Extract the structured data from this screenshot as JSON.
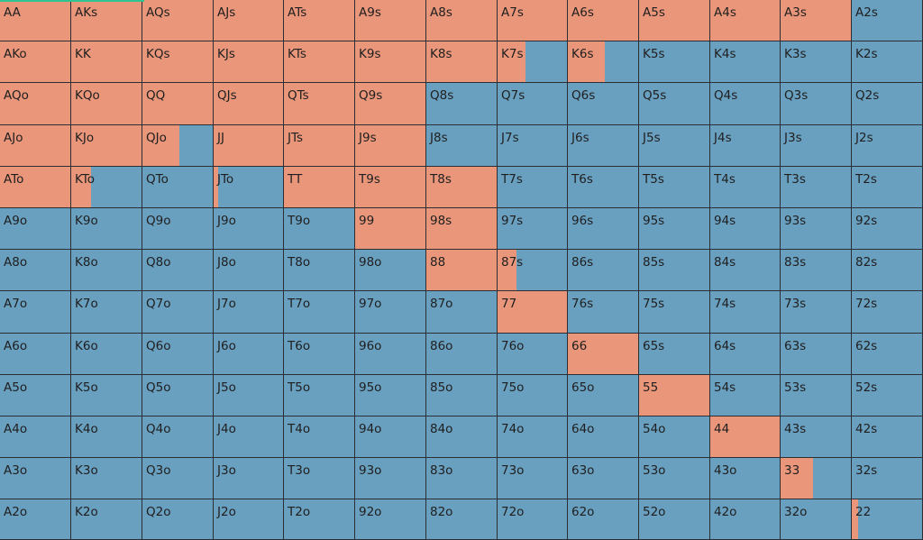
{
  "colors": {
    "raise": "#e9967a",
    "fold": "#699fbf",
    "accent": "#2fc38f"
  },
  "hands": [
    [
      {
        "label": "AA",
        "raise": 1.0
      },
      {
        "label": "AKs",
        "raise": 1.0
      },
      {
        "label": "AQs",
        "raise": 1.0
      },
      {
        "label": "AJs",
        "raise": 1.0
      },
      {
        "label": "ATs",
        "raise": 1.0
      },
      {
        "label": "A9s",
        "raise": 1.0
      },
      {
        "label": "A8s",
        "raise": 1.0
      },
      {
        "label": "A7s",
        "raise": 1.0
      },
      {
        "label": "A6s",
        "raise": 1.0
      },
      {
        "label": "A5s",
        "raise": 1.0
      },
      {
        "label": "A4s",
        "raise": 1.0
      },
      {
        "label": "A3s",
        "raise": 1.0
      },
      {
        "label": "A2s",
        "raise": 0.0
      }
    ],
    [
      {
        "label": "AKo",
        "raise": 1.0
      },
      {
        "label": "KK",
        "raise": 1.0
      },
      {
        "label": "KQs",
        "raise": 1.0
      },
      {
        "label": "KJs",
        "raise": 1.0
      },
      {
        "label": "KTs",
        "raise": 1.0
      },
      {
        "label": "K9s",
        "raise": 1.0
      },
      {
        "label": "K8s",
        "raise": 1.0
      },
      {
        "label": "K7s",
        "raise": 0.4
      },
      {
        "label": "K6s",
        "raise": 0.53
      },
      {
        "label": "K5s",
        "raise": 0.0
      },
      {
        "label": "K4s",
        "raise": 0.0
      },
      {
        "label": "K3s",
        "raise": 0.0
      },
      {
        "label": "K2s",
        "raise": 0.0
      }
    ],
    [
      {
        "label": "AQo",
        "raise": 1.0
      },
      {
        "label": "KQo",
        "raise": 1.0
      },
      {
        "label": "QQ",
        "raise": 1.0
      },
      {
        "label": "QJs",
        "raise": 1.0
      },
      {
        "label": "QTs",
        "raise": 1.0
      },
      {
        "label": "Q9s",
        "raise": 1.0
      },
      {
        "label": "Q8s",
        "raise": 0.0
      },
      {
        "label": "Q7s",
        "raise": 0.0
      },
      {
        "label": "Q6s",
        "raise": 0.0
      },
      {
        "label": "Q5s",
        "raise": 0.0
      },
      {
        "label": "Q4s",
        "raise": 0.0
      },
      {
        "label": "Q3s",
        "raise": 0.0
      },
      {
        "label": "Q2s",
        "raise": 0.0
      }
    ],
    [
      {
        "label": "AJo",
        "raise": 1.0
      },
      {
        "label": "KJo",
        "raise": 1.0
      },
      {
        "label": "QJo",
        "raise": 0.53
      },
      {
        "label": "JJ",
        "raise": 1.0
      },
      {
        "label": "JTs",
        "raise": 1.0
      },
      {
        "label": "J9s",
        "raise": 1.0
      },
      {
        "label": "J8s",
        "raise": 0.0
      },
      {
        "label": "J7s",
        "raise": 0.0
      },
      {
        "label": "J6s",
        "raise": 0.0
      },
      {
        "label": "J5s",
        "raise": 0.0
      },
      {
        "label": "J4s",
        "raise": 0.0
      },
      {
        "label": "J3s",
        "raise": 0.0
      },
      {
        "label": "J2s",
        "raise": 0.0
      }
    ],
    [
      {
        "label": "ATo",
        "raise": 1.0
      },
      {
        "label": "KTo",
        "raise": 0.28
      },
      {
        "label": "QTo",
        "raise": 0.0
      },
      {
        "label": "JTo",
        "raise": 0.07
      },
      {
        "label": "TT",
        "raise": 1.0
      },
      {
        "label": "T9s",
        "raise": 1.0
      },
      {
        "label": "T8s",
        "raise": 1.0
      },
      {
        "label": "T7s",
        "raise": 0.0
      },
      {
        "label": "T6s",
        "raise": 0.0
      },
      {
        "label": "T5s",
        "raise": 0.0
      },
      {
        "label": "T4s",
        "raise": 0.0
      },
      {
        "label": "T3s",
        "raise": 0.0
      },
      {
        "label": "T2s",
        "raise": 0.0
      }
    ],
    [
      {
        "label": "A9o",
        "raise": 0.0
      },
      {
        "label": "K9o",
        "raise": 0.0
      },
      {
        "label": "Q9o",
        "raise": 0.0
      },
      {
        "label": "J9o",
        "raise": 0.0
      },
      {
        "label": "T9o",
        "raise": 0.0
      },
      {
        "label": "99",
        "raise": 1.0
      },
      {
        "label": "98s",
        "raise": 1.0
      },
      {
        "label": "97s",
        "raise": 0.0
      },
      {
        "label": "96s",
        "raise": 0.0
      },
      {
        "label": "95s",
        "raise": 0.0
      },
      {
        "label": "94s",
        "raise": 0.0
      },
      {
        "label": "93s",
        "raise": 0.0
      },
      {
        "label": "92s",
        "raise": 0.0
      }
    ],
    [
      {
        "label": "A8o",
        "raise": 0.0
      },
      {
        "label": "K8o",
        "raise": 0.0
      },
      {
        "label": "Q8o",
        "raise": 0.0
      },
      {
        "label": "J8o",
        "raise": 0.0
      },
      {
        "label": "T8o",
        "raise": 0.0
      },
      {
        "label": "98o",
        "raise": 0.0
      },
      {
        "label": "88",
        "raise": 1.0
      },
      {
        "label": "87s",
        "raise": 0.27
      },
      {
        "label": "86s",
        "raise": 0.0
      },
      {
        "label": "85s",
        "raise": 0.0
      },
      {
        "label": "84s",
        "raise": 0.0
      },
      {
        "label": "83s",
        "raise": 0.0
      },
      {
        "label": "82s",
        "raise": 0.0
      }
    ],
    [
      {
        "label": "A7o",
        "raise": 0.0
      },
      {
        "label": "K7o",
        "raise": 0.0
      },
      {
        "label": "Q7o",
        "raise": 0.0
      },
      {
        "label": "J7o",
        "raise": 0.0
      },
      {
        "label": "T7o",
        "raise": 0.0
      },
      {
        "label": "97o",
        "raise": 0.0
      },
      {
        "label": "87o",
        "raise": 0.0
      },
      {
        "label": "77",
        "raise": 1.0
      },
      {
        "label": "76s",
        "raise": 0.0
      },
      {
        "label": "75s",
        "raise": 0.0
      },
      {
        "label": "74s",
        "raise": 0.0
      },
      {
        "label": "73s",
        "raise": 0.0
      },
      {
        "label": "72s",
        "raise": 0.0
      }
    ],
    [
      {
        "label": "A6o",
        "raise": 0.0
      },
      {
        "label": "K6o",
        "raise": 0.0
      },
      {
        "label": "Q6o",
        "raise": 0.0
      },
      {
        "label": "J6o",
        "raise": 0.0
      },
      {
        "label": "T6o",
        "raise": 0.0
      },
      {
        "label": "96o",
        "raise": 0.0
      },
      {
        "label": "86o",
        "raise": 0.0
      },
      {
        "label": "76o",
        "raise": 0.0
      },
      {
        "label": "66",
        "raise": 1.0
      },
      {
        "label": "65s",
        "raise": 0.0
      },
      {
        "label": "64s",
        "raise": 0.0
      },
      {
        "label": "63s",
        "raise": 0.0
      },
      {
        "label": "62s",
        "raise": 0.0
      }
    ],
    [
      {
        "label": "A5o",
        "raise": 0.0
      },
      {
        "label": "K5o",
        "raise": 0.0
      },
      {
        "label": "Q5o",
        "raise": 0.0
      },
      {
        "label": "J5o",
        "raise": 0.0
      },
      {
        "label": "T5o",
        "raise": 0.0
      },
      {
        "label": "95o",
        "raise": 0.0
      },
      {
        "label": "85o",
        "raise": 0.0
      },
      {
        "label": "75o",
        "raise": 0.0
      },
      {
        "label": "65o",
        "raise": 0.0
      },
      {
        "label": "55",
        "raise": 1.0
      },
      {
        "label": "54s",
        "raise": 0.0
      },
      {
        "label": "53s",
        "raise": 0.0
      },
      {
        "label": "52s",
        "raise": 0.0
      }
    ],
    [
      {
        "label": "A4o",
        "raise": 0.0
      },
      {
        "label": "K4o",
        "raise": 0.0
      },
      {
        "label": "Q4o",
        "raise": 0.0
      },
      {
        "label": "J4o",
        "raise": 0.0
      },
      {
        "label": "T4o",
        "raise": 0.0
      },
      {
        "label": "94o",
        "raise": 0.0
      },
      {
        "label": "84o",
        "raise": 0.0
      },
      {
        "label": "74o",
        "raise": 0.0
      },
      {
        "label": "64o",
        "raise": 0.0
      },
      {
        "label": "54o",
        "raise": 0.0
      },
      {
        "label": "44",
        "raise": 1.0
      },
      {
        "label": "43s",
        "raise": 0.0
      },
      {
        "label": "42s",
        "raise": 0.0
      }
    ],
    [
      {
        "label": "A3o",
        "raise": 0.0
      },
      {
        "label": "K3o",
        "raise": 0.0
      },
      {
        "label": "Q3o",
        "raise": 0.0
      },
      {
        "label": "J3o",
        "raise": 0.0
      },
      {
        "label": "T3o",
        "raise": 0.0
      },
      {
        "label": "93o",
        "raise": 0.0
      },
      {
        "label": "83o",
        "raise": 0.0
      },
      {
        "label": "73o",
        "raise": 0.0
      },
      {
        "label": "63o",
        "raise": 0.0
      },
      {
        "label": "53o",
        "raise": 0.0
      },
      {
        "label": "43o",
        "raise": 0.0
      },
      {
        "label": "33",
        "raise": 0.46
      },
      {
        "label": "32s",
        "raise": 0.0
      }
    ],
    [
      {
        "label": "A2o",
        "raise": 0.0
      },
      {
        "label": "K2o",
        "raise": 0.0
      },
      {
        "label": "Q2o",
        "raise": 0.0
      },
      {
        "label": "J2o",
        "raise": 0.0
      },
      {
        "label": "T2o",
        "raise": 0.0
      },
      {
        "label": "92o",
        "raise": 0.0
      },
      {
        "label": "82o",
        "raise": 0.0
      },
      {
        "label": "72o",
        "raise": 0.0
      },
      {
        "label": "62o",
        "raise": 0.0
      },
      {
        "label": "52o",
        "raise": 0.0
      },
      {
        "label": "42o",
        "raise": 0.0
      },
      {
        "label": "32o",
        "raise": 0.0
      },
      {
        "label": "22",
        "raise": 0.09
      }
    ]
  ]
}
